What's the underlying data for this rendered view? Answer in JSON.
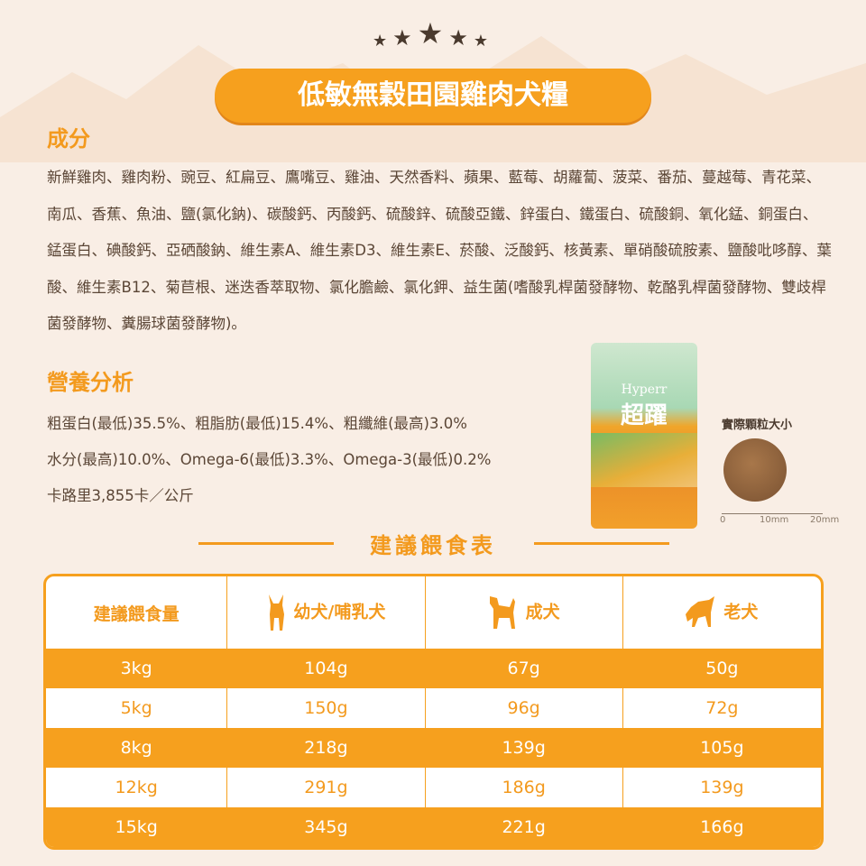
{
  "title": "低敏無穀田園雞肉犬糧",
  "ingredients": {
    "heading": "成分",
    "text": "新鮮雞肉、雞肉粉、豌豆、紅扁豆、鷹嘴豆、雞油、天然香料、蘋果、藍莓、胡蘿蔔、菠菜、番茄、蔓越莓、青花菜、南瓜、香蕉、魚油、鹽(氯化鈉)、碳酸鈣、丙酸鈣、硫酸鋅、硫酸亞鐵、鋅蛋白、鐵蛋白、硫酸銅、氧化錳、銅蛋白、錳蛋白、碘酸鈣、亞硒酸鈉、維生素A、維生素D3、維生素E、菸酸、泛酸鈣、核黃素、單硝酸硫胺素、鹽酸吡哆醇、葉酸、維生素B12、菊苣根、迷迭香萃取物、氯化膽鹼、氯化鉀、益生菌(嗜酸乳桿菌發酵物、乾酪乳桿菌發酵物、雙歧桿菌發酵物、糞腸球菌發酵物)。"
  },
  "nutrition": {
    "heading": "營養分析",
    "lines": [
      "粗蛋白(最低)35.5%、粗脂肪(最低)15.4%、粗纖維(最高)3.0%",
      "水分(最高)10.0%、Omega-6(最低)3.3%、Omega-3(最低)0.2%",
      "卡路里3,855卡／公斤"
    ]
  },
  "package": {
    "brand": "Hyperr",
    "name": "超躍"
  },
  "kibble": {
    "label": "實際顆粒大小",
    "ruler": [
      "0",
      "10mm",
      "20mm"
    ]
  },
  "feeding": {
    "title": "建議餵食表",
    "headers": [
      "建議餵食量",
      "幼犬/哺乳犬",
      "成犬",
      "老犬"
    ],
    "rows": [
      [
        "3kg",
        "104g",
        "67g",
        "50g"
      ],
      [
        "5kg",
        "150g",
        "96g",
        "72g"
      ],
      [
        "8kg",
        "218g",
        "139g",
        "105g"
      ],
      [
        "12kg",
        "291g",
        "186g",
        "139g"
      ],
      [
        "15kg",
        "345g",
        "221g",
        "166g"
      ]
    ]
  },
  "colors": {
    "accent": "#f6a01e",
    "text": "#5b4636"
  }
}
